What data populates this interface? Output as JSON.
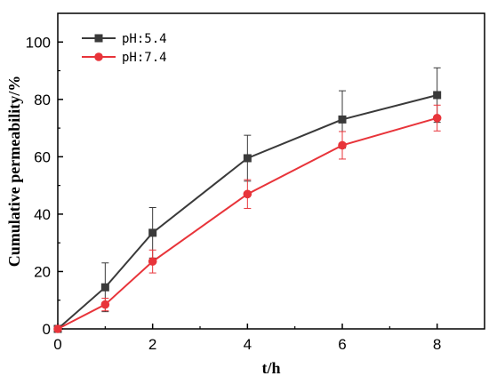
{
  "chart_data": {
    "type": "line",
    "xlabel": "t/h",
    "ylabel": "Cumulative permeability/%",
    "xlim": [
      0,
      9
    ],
    "ylim": [
      0,
      110
    ],
    "x_ticks": [
      0,
      2,
      4,
      6,
      8
    ],
    "y_ticks": [
      0,
      20,
      40,
      60,
      80,
      100
    ],
    "grid": false,
    "legend_position": "top-left",
    "x": [
      0,
      1,
      2,
      4,
      6,
      8
    ],
    "series": [
      {
        "name": "pH:5.4",
        "color": "#3a3a3a",
        "marker": "square",
        "values": [
          0,
          14.5,
          33.5,
          59.5,
          73,
          81.5
        ],
        "error": [
          0,
          8.5,
          8.8,
          8.0,
          10.0,
          9.5
        ]
      },
      {
        "name": "pH:7.4",
        "color": "#e8343a",
        "marker": "circle",
        "values": [
          0,
          8.5,
          23.5,
          47,
          64,
          73.5
        ],
        "error": [
          0,
          2.2,
          4.0,
          5.0,
          4.8,
          4.5
        ]
      }
    ]
  }
}
